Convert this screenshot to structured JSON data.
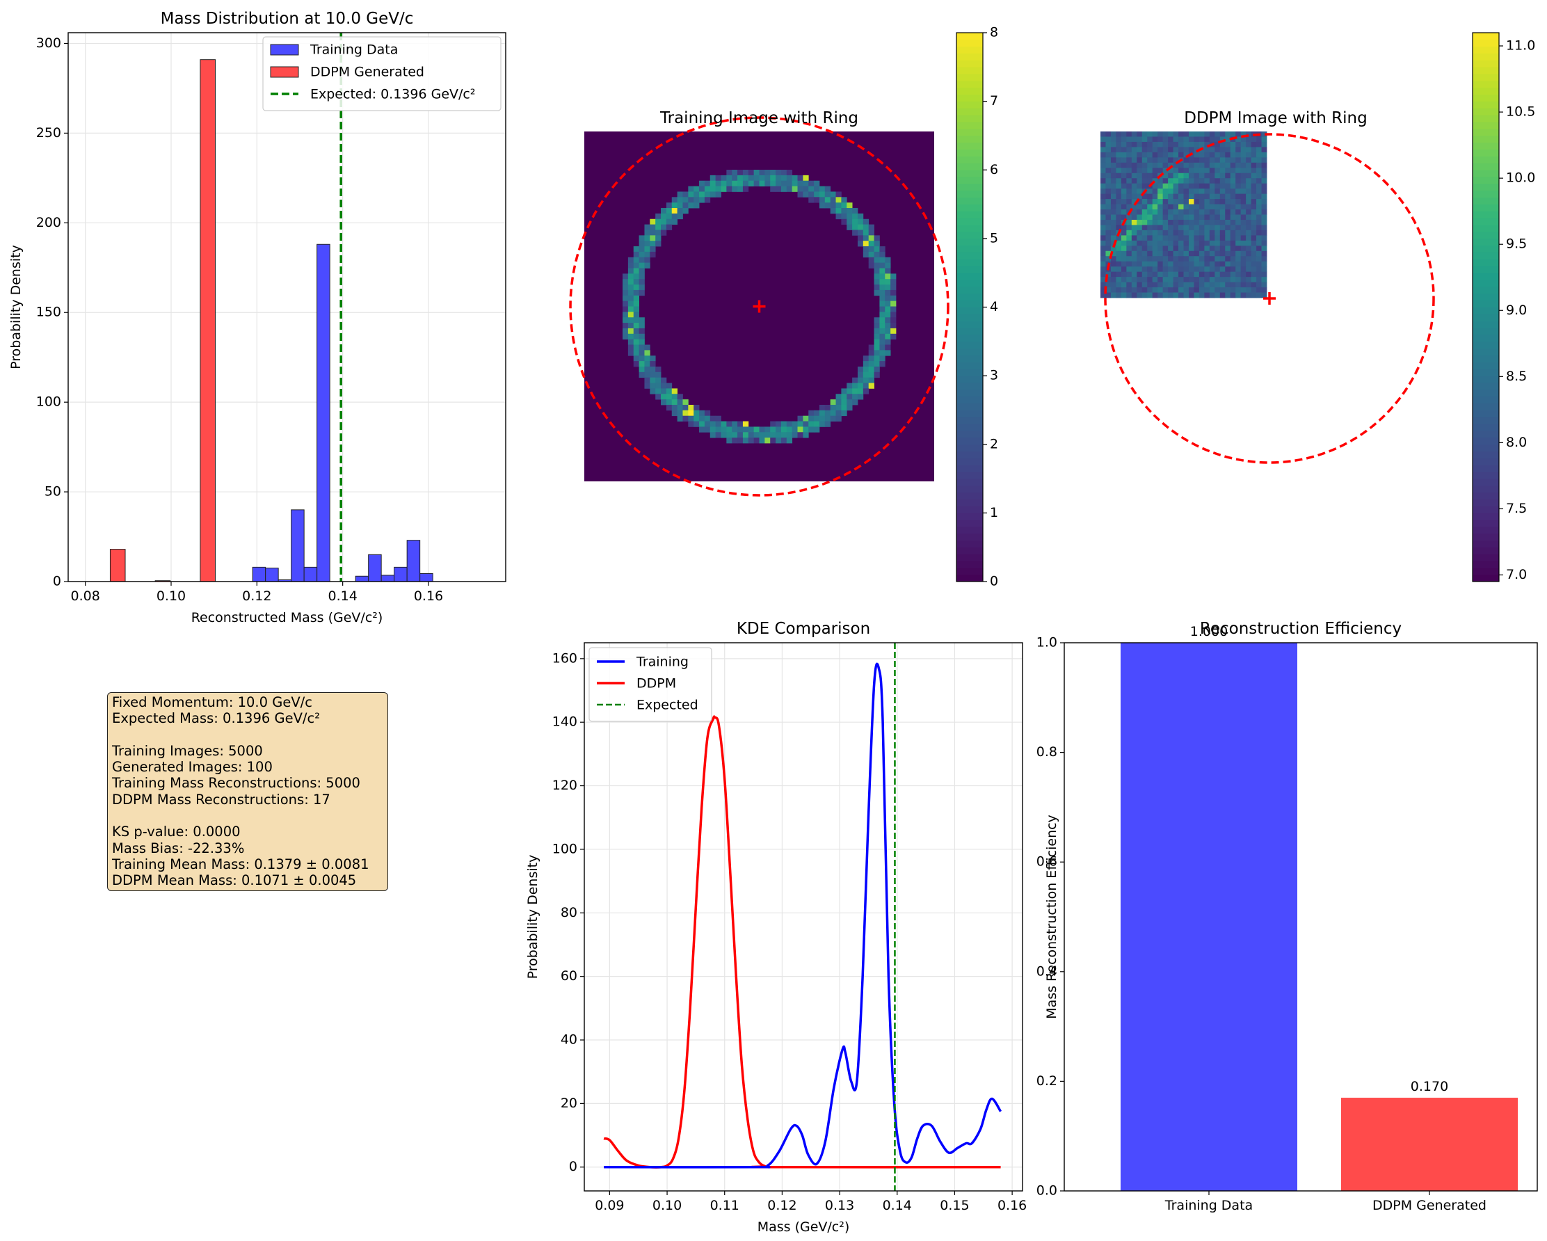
{
  "panels": {
    "hist": {
      "title": "Mass Distribution at 10.0 GeV/c",
      "xlabel": "Reconstructed Mass (GeV/c²)",
      "ylabel": "Probability Density"
    },
    "train_img": {
      "title": "Training Image with Ring"
    },
    "ddpm_img": {
      "title": "DDPM Image with Ring"
    },
    "kde": {
      "title": "KDE Comparison",
      "xlabel": "Mass (GeV/c²)",
      "ylabel": "Probability Density"
    },
    "eff": {
      "title": "Reconstruction Efficiency",
      "ylabel": "Mass Reconstruction Efficiency"
    }
  },
  "info_lines": [
    "Fixed Momentum: 10.0 GeV/c",
    "Expected Mass: 0.1396 GeV/c²",
    "",
    "Training Images: 5000",
    "Generated Images: 100",
    "Training Mass Reconstructions: 5000",
    "DDPM Mass Reconstructions: 17",
    "",
    "KS p-value: 0.0000",
    "Mass Bias: -22.33%",
    "Training Mean Mass: 0.1379 ± 0.0081",
    "DDPM Mean Mass: 0.1071 ± 0.0045"
  ],
  "colors": {
    "training": "#4b4bff",
    "ddpm": "#ff4b4b",
    "expected": "#008000",
    "kde_training": "#0000ff",
    "kde_ddpm": "#ff0000",
    "ring": "#ff0000",
    "infobox": "#f5deb3"
  },
  "chart_data": [
    {
      "type": "bar",
      "title": "Mass Distribution at 10.0 GeV/c",
      "xlabel": "Reconstructed Mass (GeV/c²)",
      "ylabel": "Probability Density",
      "xlim": [
        0.076,
        0.178
      ],
      "ylim": [
        0,
        306
      ],
      "xticks": [
        "0.08",
        "0.10",
        "0.12",
        "0.14",
        "0.16"
      ],
      "yticks": [
        "0",
        "50",
        "100",
        "150",
        "200",
        "250",
        "300"
      ],
      "legend_position": "top-right",
      "series": [
        {
          "name": "Training Data",
          "bin_edges": [
            0.119,
            0.122,
            0.125,
            0.128,
            0.131,
            0.134,
            0.137,
            0.14,
            0.143,
            0.146,
            0.149,
            0.152,
            0.155,
            0.158,
            0.161
          ],
          "values": [
            8,
            7.5,
            1,
            40,
            8,
            188,
            0,
            0,
            3,
            15,
            3.5,
            8,
            23,
            4.5
          ]
        },
        {
          "name": "DDPM Generated",
          "bin_edges": [
            0.0858,
            0.0893,
            0.0928,
            0.0963,
            0.0998,
            0.1033,
            0.1068,
            0.1103
          ],
          "values": [
            18,
            0,
            0,
            0.5,
            0,
            0,
            291
          ]
        }
      ],
      "vline": {
        "name": "Expected: 0.1396 GeV/c²",
        "x": 0.1396
      }
    },
    {
      "type": "heatmap",
      "title": "Training Image with Ring",
      "grid": 64,
      "colorbar_range": [
        0,
        8
      ],
      "colorbar_ticks": [
        "0",
        "1",
        "2",
        "3",
        "4",
        "5",
        "6",
        "7",
        "8"
      ],
      "ring": {
        "center": [
          32,
          32
        ],
        "radius": 22
      }
    },
    {
      "type": "heatmap",
      "title": "DDPM Image with Ring",
      "grid": 32,
      "colorbar_range": [
        6.95,
        11.1
      ],
      "colorbar_ticks": [
        "7.0",
        "7.5",
        "8.0",
        "8.5",
        "9.0",
        "9.5",
        "10.0",
        "10.5",
        "11.0"
      ],
      "ring": {
        "center": [
          32,
          32
        ],
        "radius": 31.5
      }
    },
    {
      "type": "line",
      "title": "KDE Comparison",
      "xlabel": "Mass (GeV/c²)",
      "ylabel": "Probability Density",
      "xlim": [
        0.0856,
        0.1618
      ],
      "ylim": [
        -7.5,
        165
      ],
      "xticks": [
        "0.09",
        "0.10",
        "0.11",
        "0.12",
        "0.13",
        "0.14",
        "0.15",
        "0.16"
      ],
      "yticks": [
        "0",
        "20",
        "40",
        "60",
        "80",
        "100",
        "120",
        "140",
        "160"
      ],
      "legend_position": "top-left",
      "series": [
        {
          "name": "Training",
          "x": [
            0.089,
            0.115,
            0.1175,
            0.1195,
            0.1215,
            0.1225,
            0.1235,
            0.1245,
            0.126,
            0.1275,
            0.129,
            0.1305,
            0.131,
            0.132,
            0.133,
            0.134,
            0.135,
            0.136,
            0.1368,
            0.1375,
            0.1385,
            0.1395,
            0.1405,
            0.1415,
            0.1425,
            0.1435,
            0.1445,
            0.146,
            0.1475,
            0.149,
            0.1505,
            0.152,
            0.153,
            0.1545,
            0.1555,
            0.1565,
            0.158
          ],
          "y": [
            0,
            0,
            0.5,
            5,
            12,
            13,
            10,
            4,
            1,
            8,
            25,
            37,
            36,
            27,
            27,
            60,
            110,
            152,
            157,
            140,
            60,
            20,
            5,
            1.5,
            3,
            9,
            13,
            13,
            8,
            4.5,
            6,
            7.5,
            7.5,
            12,
            18,
            21.5,
            17.5
          ]
        },
        {
          "name": "DDPM",
          "x": [
            0.089,
            0.09,
            0.0915,
            0.093,
            0.095,
            0.097,
            0.099,
            0.1,
            0.101,
            0.102,
            0.103,
            0.104,
            0.105,
            0.106,
            0.107,
            0.108,
            0.1083,
            0.109,
            0.11,
            0.111,
            0.112,
            0.113,
            0.114,
            0.115,
            0.116,
            0.117,
            0.118,
            0.158
          ],
          "y": [
            9,
            8.5,
            5,
            2,
            0.5,
            0,
            0,
            0.5,
            2.5,
            9,
            24,
            50,
            82,
            113,
            135,
            141,
            141.5,
            139,
            122,
            92,
            60,
            32,
            15,
            5,
            1.5,
            0.3,
            0,
            0
          ]
        }
      ],
      "vline": {
        "name": "Expected",
        "x": 0.1396
      }
    },
    {
      "type": "bar",
      "title": "Reconstruction Efficiency",
      "ylabel": "Mass Reconstruction Efficiency",
      "categories": [
        "Training Data",
        "DDPM Generated"
      ],
      "values": [
        1.0,
        0.17
      ],
      "labels": [
        "1.000",
        "0.170"
      ],
      "ylim": [
        0,
        1
      ],
      "yticks": [
        "0.0",
        "0.2",
        "0.4",
        "0.6",
        "0.8",
        "1.0"
      ]
    }
  ]
}
